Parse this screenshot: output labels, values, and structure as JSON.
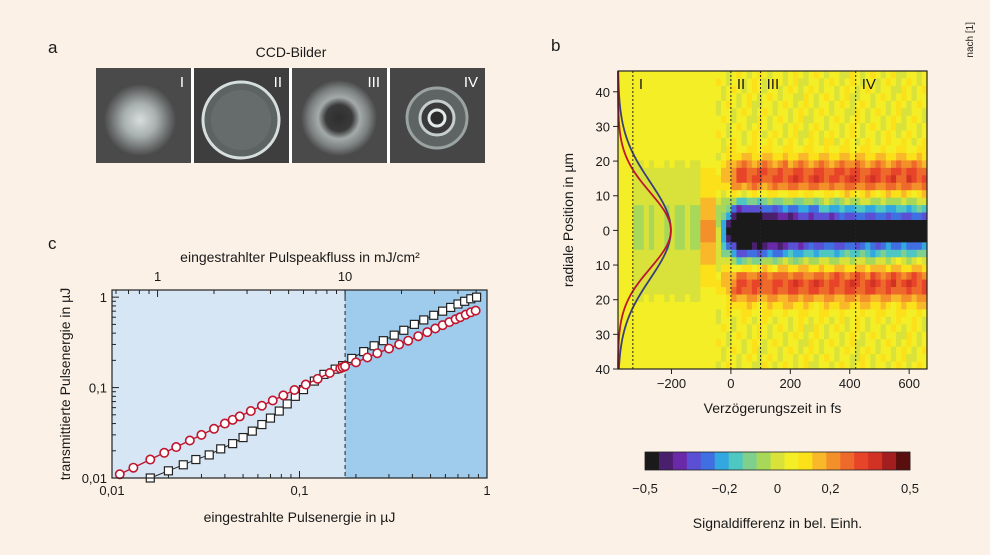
{
  "panels": {
    "a": {
      "letter": "a",
      "title": "CCD-Bilder",
      "images": [
        {
          "label": "I"
        },
        {
          "label": "II"
        },
        {
          "label": "III"
        },
        {
          "label": "IV"
        }
      ]
    },
    "b": {
      "letter": "b"
    },
    "c": {
      "letter": "c"
    }
  },
  "side_note": "nach [1]",
  "chart_data": [
    {
      "type": "scatter",
      "panel": "c",
      "xlabel": "eingestrahlte Pulsenergie in µJ",
      "ylabel": "transmittierte Pulsenergie in µJ",
      "top_xlabel": "eingestrahlter Pulspeakfluss in mJ/cm²",
      "x_scale": "log",
      "y_scale": "log",
      "xlim": [
        0.01,
        1
      ],
      "ylim": [
        0.01,
        1.2
      ],
      "x_ticks": [
        "0,01",
        "0,1",
        "1"
      ],
      "y_ticks": [
        "0,01",
        "0,1",
        "1"
      ],
      "top_x_ticks": [
        "1",
        "10"
      ],
      "threshold_x": 0.175,
      "colors": {
        "region_low": "#d6e6f4",
        "region_high": "#9fcbec",
        "circles": "#c0152e",
        "squares": "#222222"
      },
      "series": [
        {
          "marker": "circle",
          "x": [
            0.011,
            0.013,
            0.016,
            0.019,
            0.022,
            0.026,
            0.03,
            0.035,
            0.04,
            0.044,
            0.048,
            0.055,
            0.063,
            0.072,
            0.082,
            0.094,
            0.108,
            0.125,
            0.145,
            0.165,
            0.17,
            0.175,
            0.2,
            0.23,
            0.26,
            0.3,
            0.34,
            0.38,
            0.43,
            0.48,
            0.53,
            0.58,
            0.63,
            0.68,
            0.72,
            0.77,
            0.82,
            0.87
          ],
          "y": [
            0.011,
            0.013,
            0.016,
            0.019,
            0.022,
            0.026,
            0.03,
            0.035,
            0.04,
            0.044,
            0.048,
            0.055,
            0.063,
            0.072,
            0.082,
            0.094,
            0.108,
            0.125,
            0.145,
            0.163,
            0.168,
            0.172,
            0.19,
            0.215,
            0.24,
            0.27,
            0.3,
            0.33,
            0.37,
            0.41,
            0.45,
            0.49,
            0.53,
            0.57,
            0.6,
            0.64,
            0.68,
            0.71
          ]
        },
        {
          "marker": "square",
          "x": [
            0.016,
            0.02,
            0.024,
            0.028,
            0.033,
            0.038,
            0.044,
            0.05,
            0.056,
            0.063,
            0.07,
            0.078,
            0.086,
            0.095,
            0.105,
            0.12,
            0.135,
            0.155,
            0.17,
            0.19,
            0.22,
            0.25,
            0.28,
            0.32,
            0.36,
            0.41,
            0.46,
            0.52,
            0.58,
            0.64,
            0.7,
            0.76,
            0.82,
            0.88
          ],
          "y": [
            0.01,
            0.012,
            0.014,
            0.016,
            0.018,
            0.021,
            0.024,
            0.028,
            0.033,
            0.039,
            0.046,
            0.055,
            0.066,
            0.08,
            0.095,
            0.118,
            0.14,
            0.16,
            0.175,
            0.21,
            0.25,
            0.29,
            0.33,
            0.38,
            0.43,
            0.5,
            0.56,
            0.63,
            0.7,
            0.77,
            0.84,
            0.9,
            0.96,
            1.0
          ]
        }
      ]
    },
    {
      "type": "heatmap",
      "panel": "b",
      "xlabel": "Verzögerungszeit in fs",
      "ylabel": "radiale Position in µm",
      "xlim": [
        -380,
        660
      ],
      "ylim": [
        -46,
        40
      ],
      "x_ticks": [
        "−200",
        "0",
        "200",
        "400",
        "600"
      ],
      "y_ticks": [
        "40",
        "30",
        "20",
        "10",
        "0",
        "10",
        "20",
        "30",
        "40"
      ],
      "markers": [
        {
          "label": "I",
          "x": -330
        },
        {
          "label": "II",
          "x": 0
        },
        {
          "label": "III",
          "x": 100
        },
        {
          "label": "IV",
          "x": 420
        }
      ],
      "gaussian_colors": {
        "red": "#c0152e",
        "blue": "#3a3f7a"
      },
      "colorbar": {
        "label": "Signaldifferenz in bel. Einh.",
        "min": -0.5,
        "max": 0.5,
        "ticks": [
          "−0,5",
          "−0,2",
          "0",
          "0,2",
          "0,5"
        ],
        "colors": [
          "#1a1a1a",
          "#4a1f6e",
          "#6a2aa8",
          "#5b4fd4",
          "#3f6fe0",
          "#33a7e0",
          "#4ec7c2",
          "#7fd08c",
          "#a8d85a",
          "#d8e23a",
          "#f4ee26",
          "#fbe01a",
          "#f8b82a",
          "#f4902a",
          "#ee6a2a",
          "#e8442a",
          "#d23224",
          "#a31e1e",
          "#5a0f0f"
        ]
      }
    }
  ]
}
